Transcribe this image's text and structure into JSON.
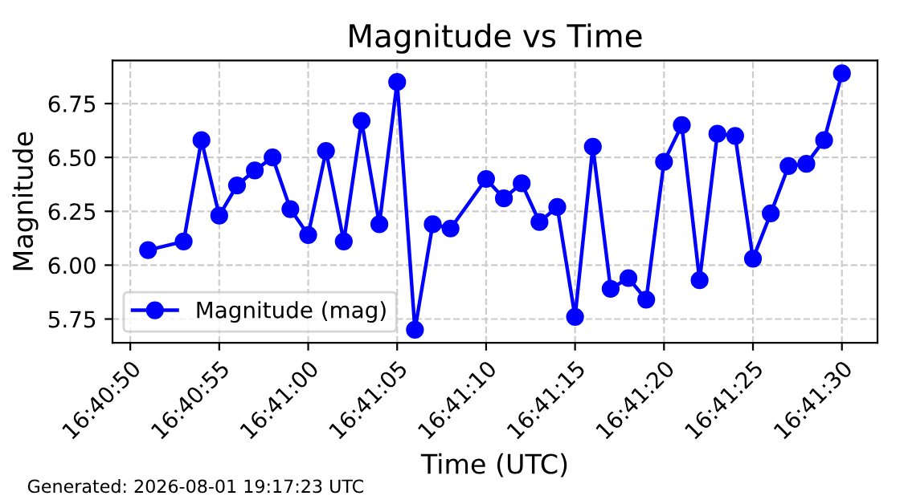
{
  "chart_data": {
    "type": "line",
    "title": "Magnitude vs Time",
    "xlabel": "Time (UTC)",
    "ylabel": "Magnitude",
    "x": [
      "2026-08-01T16:40:51",
      "2026-08-01T16:40:53",
      "2026-08-01T16:40:54",
      "2026-08-01T16:40:55",
      "2026-08-01T16:40:56",
      "2026-08-01T16:40:57",
      "2026-08-01T16:40:58",
      "2026-08-01T16:40:59",
      "2026-08-01T16:41:00",
      "2026-08-01T16:41:01",
      "2026-08-01T16:41:02",
      "2026-08-01T16:41:03",
      "2026-08-01T16:41:04",
      "2026-08-01T16:41:05",
      "2026-08-01T16:41:06",
      "2026-08-01T16:41:07",
      "2026-08-01T16:41:08",
      "2026-08-01T16:41:10",
      "2026-08-01T16:41:11",
      "2026-08-01T16:41:12",
      "2026-08-01T16:41:13",
      "2026-08-01T16:41:14",
      "2026-08-01T16:41:15",
      "2026-08-01T16:41:16",
      "2026-08-01T16:41:17",
      "2026-08-01T16:41:18",
      "2026-08-01T16:41:19",
      "2026-08-01T16:41:20",
      "2026-08-01T16:41:21",
      "2026-08-01T16:41:22",
      "2026-08-01T16:41:23",
      "2026-08-01T16:41:24",
      "2026-08-01T16:41:25",
      "2026-08-01T16:41:26",
      "2026-08-01T16:41:27",
      "2026-08-01T16:41:28",
      "2026-08-01T16:41:29",
      "2026-08-01T16:41:30"
    ],
    "series": [
      {
        "name": "Magnitude (mag)",
        "color": "#0000ff",
        "values": [
          6.07,
          6.11,
          6.58,
          6.23,
          6.37,
          6.44,
          6.5,
          6.26,
          6.14,
          6.53,
          6.11,
          6.67,
          6.19,
          6.85,
          5.7,
          6.19,
          6.17,
          6.4,
          6.31,
          6.38,
          6.2,
          6.27,
          5.76,
          6.55,
          5.89,
          5.94,
          5.84,
          6.48,
          6.65,
          5.93,
          6.61,
          6.6,
          6.03,
          6.24,
          6.46,
          6.47,
          6.58,
          6.89
        ]
      }
    ],
    "xlim": [
      "2026-08-01T16:40:49",
      "2026-08-01T16:41:32"
    ],
    "xticks": [
      {
        "value": "2026-08-01T16:40:50",
        "label": "16:40:50"
      },
      {
        "value": "2026-08-01T16:40:55",
        "label": "16:40:55"
      },
      {
        "value": "2026-08-01T16:41:00",
        "label": "16:41:00"
      },
      {
        "value": "2026-08-01T16:41:05",
        "label": "16:41:05"
      },
      {
        "value": "2026-08-01T16:41:10",
        "label": "16:41:10"
      },
      {
        "value": "2026-08-01T16:41:15",
        "label": "16:41:15"
      },
      {
        "value": "2026-08-01T16:41:20",
        "label": "16:41:20"
      },
      {
        "value": "2026-08-01T16:41:25",
        "label": "16:41:25"
      },
      {
        "value": "2026-08-01T16:41:30",
        "label": "16:41:30"
      }
    ],
    "ylim": [
      5.64,
      6.95
    ],
    "yticks": [
      5.75,
      {
        "value": 6.0,
        "label": "6.00"
      },
      6.25,
      {
        "value": 6.5,
        "label": "6.50"
      },
      6.75
    ],
    "grid": true,
    "legend": "bottom left",
    "marker": "circle",
    "line_style": "solid",
    "annotations": [
      "Generated: 2026-08-01 19:17:23 UTC"
    ]
  }
}
